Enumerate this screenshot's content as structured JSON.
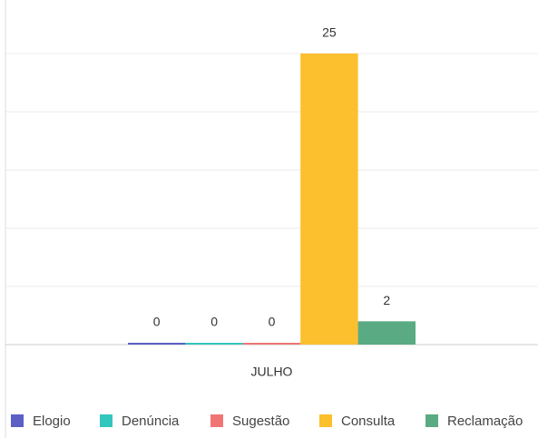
{
  "chart_data": {
    "type": "bar",
    "categories": [
      "JULHO"
    ],
    "series": [
      {
        "name": "Elogio",
        "color": "#5c5fc4",
        "values": [
          0
        ]
      },
      {
        "name": "Denúncia",
        "color": "#33c6bd",
        "values": [
          0
        ]
      },
      {
        "name": "Sugestão",
        "color": "#f07676",
        "values": [
          0
        ]
      },
      {
        "name": "Consulta",
        "color": "#fcbf2e",
        "values": [
          25
        ]
      },
      {
        "name": "Reclamação",
        "color": "#5aab83",
        "values": [
          2
        ]
      }
    ],
    "ylim": [
      0,
      25
    ],
    "yticks": [
      0,
      5,
      10,
      15,
      20,
      25
    ],
    "grid": true,
    "legend": "bottom"
  }
}
